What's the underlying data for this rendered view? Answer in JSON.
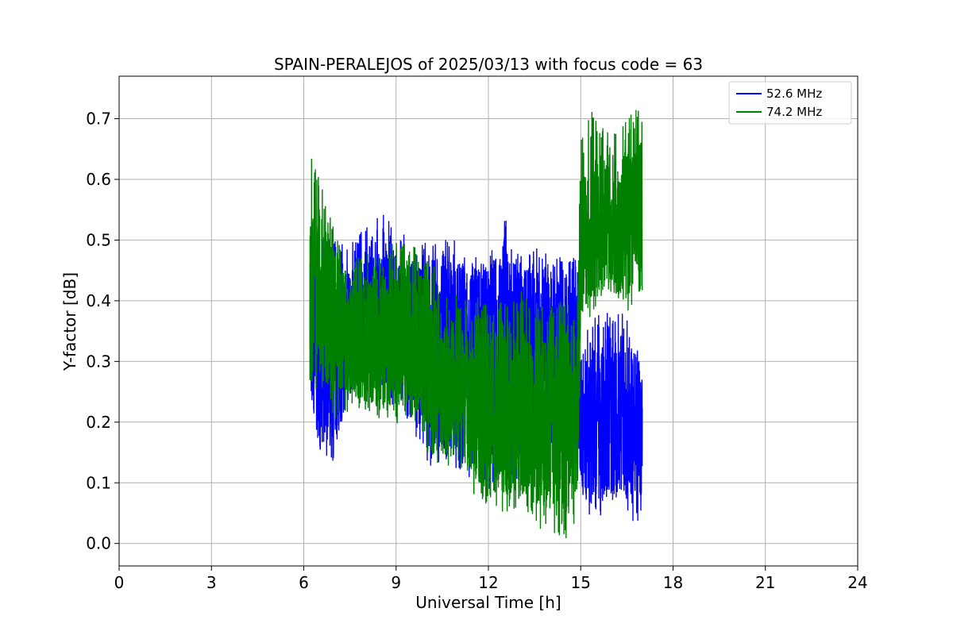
{
  "chart_data": {
    "type": "line",
    "title": "SPAIN-PERALEJOS of 2025/03/13 with focus code = 63",
    "xlabel": "Universal Time [h]",
    "ylabel": "Y-factor [dB]",
    "xlim": [
      0,
      24
    ],
    "ylim": [
      -0.037,
      0.77
    ],
    "xticks": [
      0,
      3,
      6,
      9,
      12,
      15,
      18,
      21,
      24
    ],
    "yticks": [
      0.0,
      0.1,
      0.2,
      0.3,
      0.4,
      0.5,
      0.6,
      0.7
    ],
    "xtick_labels": [
      "0",
      "3",
      "6",
      "9",
      "12",
      "15",
      "18",
      "21",
      "24"
    ],
    "ytick_labels": [
      "0.0",
      "0.1",
      "0.2",
      "0.3",
      "0.4",
      "0.5",
      "0.6",
      "0.7"
    ],
    "grid": true,
    "legend_position": "top-right",
    "series": [
      {
        "name": "52.6 MHz",
        "color": "#0000ff",
        "x": [
          6.2,
          6.5,
          7.0,
          7.5,
          8.0,
          8.5,
          9.0,
          9.5,
          10.0,
          10.5,
          11.0,
          11.5,
          12.0,
          12.5,
          13.0,
          13.5,
          14.0,
          14.5,
          14.9,
          15.0,
          15.5,
          16.0,
          16.5,
          17.0
        ],
        "min": [
          0.24,
          0.15,
          0.13,
          0.22,
          0.25,
          0.25,
          0.22,
          0.2,
          0.12,
          0.13,
          0.12,
          0.1,
          0.05,
          0.1,
          0.1,
          0.12,
          0.15,
          0.15,
          0.15,
          0.05,
          0.04,
          0.05,
          0.04,
          0.02
        ],
        "max": [
          0.52,
          0.53,
          0.5,
          0.5,
          0.52,
          0.55,
          0.52,
          0.5,
          0.5,
          0.5,
          0.5,
          0.48,
          0.47,
          0.54,
          0.49,
          0.49,
          0.48,
          0.47,
          0.48,
          0.33,
          0.38,
          0.38,
          0.38,
          0.3
        ],
        "center": [
          0.36,
          0.3,
          0.3,
          0.35,
          0.37,
          0.38,
          0.37,
          0.35,
          0.33,
          0.32,
          0.32,
          0.32,
          0.3,
          0.32,
          0.32,
          0.31,
          0.32,
          0.3,
          0.3,
          0.2,
          0.2,
          0.2,
          0.2,
          0.18
        ]
      },
      {
        "name": "74.2 MHz",
        "color": "#008000",
        "x": [
          6.2,
          6.5,
          7.0,
          7.5,
          8.0,
          8.5,
          9.0,
          9.5,
          10.0,
          10.5,
          11.0,
          11.5,
          12.0,
          12.5,
          13.0,
          13.5,
          14.0,
          14.5,
          14.9,
          15.0,
          15.5,
          16.0,
          16.5,
          17.0
        ],
        "min": [
          0.24,
          0.25,
          0.2,
          0.22,
          0.22,
          0.2,
          0.19,
          0.2,
          0.15,
          0.12,
          0.1,
          0.08,
          0.06,
          0.05,
          0.06,
          0.03,
          0.01,
          0.0,
          0.01,
          0.36,
          0.38,
          0.4,
          0.38,
          0.4
        ],
        "max": [
          0.65,
          0.6,
          0.52,
          0.48,
          0.48,
          0.5,
          0.5,
          0.5,
          0.49,
          0.42,
          0.41,
          0.4,
          0.42,
          0.4,
          0.42,
          0.4,
          0.4,
          0.4,
          0.42,
          0.68,
          0.73,
          0.68,
          0.7,
          0.73
        ],
        "center": [
          0.4,
          0.42,
          0.36,
          0.34,
          0.33,
          0.33,
          0.34,
          0.34,
          0.32,
          0.26,
          0.24,
          0.23,
          0.22,
          0.21,
          0.22,
          0.2,
          0.2,
          0.2,
          0.22,
          0.5,
          0.52,
          0.52,
          0.53,
          0.54
        ]
      }
    ]
  }
}
